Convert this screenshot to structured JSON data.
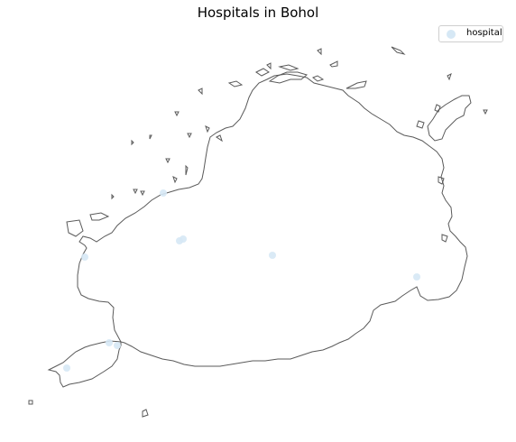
{
  "map": {
    "title": "Hospitals in Bohol",
    "legend": {
      "label": "hospital",
      "color": "#d6e8f5"
    },
    "outline_color": "#5a5a5a",
    "marker_count": 9
  }
}
